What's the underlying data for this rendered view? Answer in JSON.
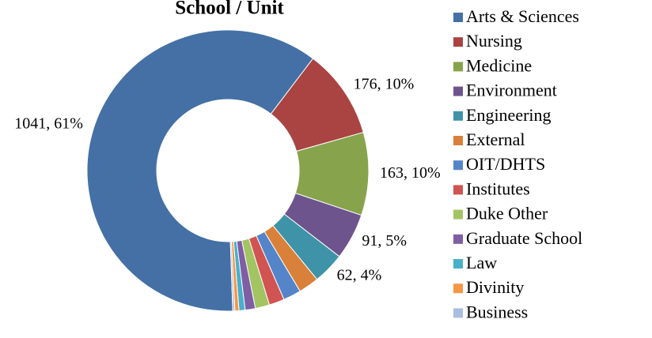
{
  "chart_data": {
    "type": "donut",
    "title": "School / Unit",
    "categories": [
      "Arts & Sciences",
      "Nursing",
      "Medicine",
      "Environment",
      "Engineering",
      "External",
      "OIT/DHTS",
      "Institutes",
      "Duke Other",
      "Graduate School",
      "Law",
      "Divinity",
      "Business"
    ],
    "values": [
      1041,
      176,
      163,
      91,
      62,
      40,
      35,
      30,
      28,
      20,
      12,
      8,
      4
    ],
    "value_labels": [
      "1041, 61%",
      "176, 10%",
      "163, 10%",
      "91, 5%",
      "62, 4%",
      null,
      null,
      null,
      null,
      null,
      null,
      null,
      null
    ],
    "colors": [
      "#4470a5",
      "#a94442",
      "#87a34c",
      "#6e548d",
      "#3f93a8",
      "#d9803a",
      "#5585c9",
      "#cf5452",
      "#a3c463",
      "#7e5fa3",
      "#49b0cb",
      "#f79646",
      "#a9bde0"
    ],
    "legend": "right"
  }
}
